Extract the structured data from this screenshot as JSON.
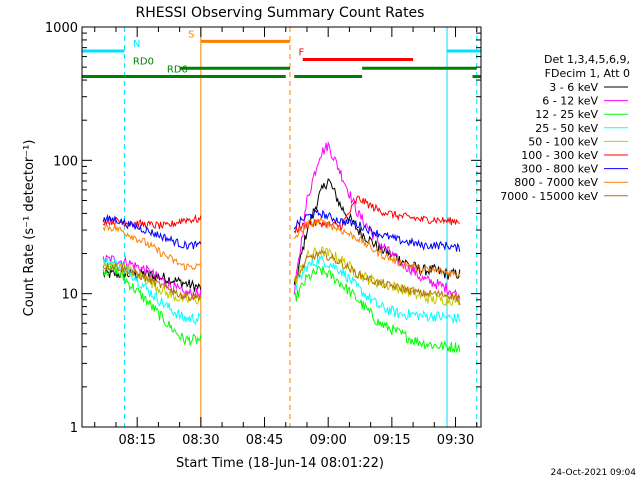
{
  "chart_data": {
    "type": "line",
    "title": "RHESSI Observing Summary Count Rates",
    "xlabel": "Start Time (18-Jun-14 08:01:22)",
    "ylabel": "Count Rate (s⁻¹ detector⁻¹)",
    "y_scale": "log",
    "ylim": [
      1,
      1000
    ],
    "xlim": [
      "08:02",
      "09:36"
    ],
    "x_ticks": [
      "08:15",
      "08:30",
      "08:45",
      "09:00",
      "09:15",
      "09:30"
    ],
    "y_ticks": [
      "1",
      "10",
      "100",
      "1000"
    ],
    "timestamp": "24-Oct-2021 09:04",
    "legend": {
      "header": [
        "Det 1,3,4,5,6,9,",
        "FDecim 1, Att 0"
      ],
      "placement": "right"
    },
    "series": [
      {
        "name": "3 - 6 keV",
        "color": "#000000",
        "x": [
          "08:07",
          "08:10",
          "08:13",
          "08:17",
          "08:22",
          "08:26",
          "08:30",
          "08:52",
          "08:55",
          "08:58",
          "09:00",
          "09:03",
          "09:07",
          "09:12",
          "09:17",
          "09:20",
          "09:22",
          "09:25",
          "09:28",
          "09:30",
          "09:31"
        ],
        "values": [
          14,
          14,
          14,
          14,
          13,
          12,
          11,
          11,
          30,
          55,
          72,
          45,
          30,
          22,
          18,
          16,
          15,
          15,
          14,
          14,
          14
        ]
      },
      {
        "name": "6 - 12 keV",
        "color": "#ff00ff",
        "x": [
          "08:07",
          "08:10",
          "08:13",
          "08:17",
          "08:22",
          "08:26",
          "08:30",
          "08:52",
          "08:55",
          "08:58",
          "09:00",
          "09:03",
          "09:07",
          "09:12",
          "09:17",
          "09:20",
          "09:22",
          "09:25",
          "09:28",
          "09:30",
          "09:31"
        ],
        "values": [
          18,
          18,
          17,
          15,
          12,
          10,
          10,
          10,
          50,
          110,
          130,
          80,
          40,
          24,
          17,
          15,
          13,
          12,
          11,
          10,
          9
        ]
      },
      {
        "name": "12 - 25 keV",
        "color": "#00ff00",
        "x": [
          "08:07",
          "08:10",
          "08:13",
          "08:17",
          "08:22",
          "08:26",
          "08:30",
          "08:52",
          "08:55",
          "08:58",
          "09:00",
          "09:03",
          "09:07",
          "09:12",
          "09:17",
          "09:20",
          "09:22",
          "09:25",
          "09:28",
          "09:30",
          "09:31"
        ],
        "values": [
          15,
          15,
          12,
          9,
          6,
          4.5,
          4.5,
          9,
          13,
          15,
          14,
          12,
          9,
          6,
          5,
          4.5,
          4.3,
          4.1,
          4,
          4,
          4
        ]
      },
      {
        "name": "25 - 50 keV",
        "color": "#00ffff",
        "x": [
          "08:07",
          "08:10",
          "08:13",
          "08:17",
          "08:22",
          "08:26",
          "08:30",
          "08:52",
          "08:55",
          "08:58",
          "09:00",
          "09:03",
          "09:07",
          "09:12",
          "09:17",
          "09:20",
          "09:22",
          "09:25",
          "09:28",
          "09:30",
          "09:31"
        ],
        "values": [
          17,
          17,
          15,
          11,
          8,
          6.5,
          6.5,
          11,
          16,
          18,
          17,
          15,
          11,
          8,
          7,
          7,
          6.8,
          6.8,
          6.6,
          6.5,
          6.5
        ]
      },
      {
        "name": "50 - 100 keV",
        "color": "#c8c800",
        "x": [
          "08:07",
          "08:10",
          "08:13",
          "08:17",
          "08:22",
          "08:26",
          "08:30",
          "08:52",
          "08:55",
          "08:58",
          "09:00",
          "09:03",
          "09:07",
          "09:12",
          "09:17",
          "09:20",
          "09:22",
          "09:25",
          "09:28",
          "09:30",
          "09:31"
        ],
        "values": [
          16,
          16,
          15,
          13,
          10,
          9,
          9,
          12,
          19,
          21,
          20,
          18,
          14,
          12,
          11,
          10,
          9.5,
          9,
          9,
          9,
          9
        ]
      },
      {
        "name": "100 - 300 keV",
        "color": "#ff0000",
        "x": [
          "08:07",
          "08:10",
          "08:13",
          "08:17",
          "08:22",
          "08:26",
          "08:30",
          "08:52",
          "08:55",
          "08:58",
          "09:00",
          "09:03",
          "09:07",
          "09:12",
          "09:17",
          "09:20",
          "09:22",
          "09:25",
          "09:28",
          "09:30",
          "09:31"
        ],
        "values": [
          35,
          35,
          34,
          33,
          32,
          36,
          36,
          30,
          33,
          34,
          33,
          32,
          52,
          42,
          38,
          37,
          36,
          36,
          35,
          35,
          35
        ]
      },
      {
        "name": "300 - 800 keV",
        "color": "#0000ff",
        "x": [
          "08:07",
          "08:10",
          "08:13",
          "08:17",
          "08:22",
          "08:26",
          "08:30",
          "08:52",
          "08:55",
          "08:58",
          "09:00",
          "09:03",
          "09:07",
          "09:12",
          "09:17",
          "09:20",
          "09:22",
          "09:25",
          "09:28",
          "09:30",
          "09:31"
        ],
        "values": [
          36,
          36,
          33,
          30,
          26,
          23,
          23,
          32,
          38,
          40,
          38,
          35,
          33,
          28,
          25,
          24,
          23,
          23,
          23,
          22,
          22
        ]
      },
      {
        "name": "800 - 7000 keV",
        "color": "#ff8000",
        "x": [
          "08:07",
          "08:10",
          "08:13",
          "08:17",
          "08:22",
          "08:26",
          "08:30",
          "08:52",
          "08:55",
          "08:58",
          "09:00",
          "09:03",
          "09:07",
          "09:12",
          "09:17",
          "09:20",
          "09:22",
          "09:25",
          "09:28",
          "09:30",
          "09:31"
        ],
        "values": [
          32,
          31,
          28,
          24,
          19,
          16,
          16,
          26,
          33,
          35,
          33,
          30,
          26,
          20,
          17,
          16,
          15,
          15,
          14.5,
          14,
          14
        ]
      },
      {
        "name": "7000 - 15000 keV",
        "color": "#b07800",
        "x": [
          "08:07",
          "08:10",
          "08:13",
          "08:17",
          "08:22",
          "08:26",
          "08:30",
          "08:52",
          "08:55",
          "08:58",
          "09:00",
          "09:03",
          "09:07",
          "09:12",
          "09:17",
          "09:20",
          "09:22",
          "09:25",
          "09:28",
          "09:30",
          "09:31"
        ],
        "values": [
          16,
          16,
          15,
          13,
          11,
          9.5,
          9.5,
          12,
          18,
          20,
          19,
          17,
          14,
          12,
          11,
          10.5,
          10,
          10,
          9.8,
          9.5,
          9.5
        ]
      }
    ],
    "flag_bars": [
      {
        "label": "N",
        "color": "#00e0ff",
        "y": 660,
        "segments": [
          [
            "08:02",
            "08:12"
          ],
          [
            "09:28",
            "09:36"
          ]
        ],
        "label_at": "08:14"
      },
      {
        "label": "S",
        "color": "#ff8000",
        "y": 780,
        "segments": [
          [
            "08:30",
            "08:51"
          ]
        ],
        "label_at": "08:27"
      },
      {
        "label": "F",
        "color": "#ff0000",
        "y": 570,
        "segments": [
          [
            "08:54",
            "09:20"
          ]
        ],
        "label_at": "08:53"
      },
      {
        "label": "RD0",
        "color": "#008000",
        "y": 490,
        "segments": [
          [
            "08:25",
            "08:51"
          ],
          [
            "09:08",
            "09:35"
          ]
        ],
        "label_at": "08:14"
      },
      {
        "label": "RD6",
        "color": "#008000",
        "y": 425,
        "segments": [
          [
            "08:02",
            "08:50"
          ],
          [
            "08:52",
            "09:08"
          ],
          [
            "09:34",
            "09:36"
          ]
        ],
        "label_at": "08:22"
      }
    ],
    "vlines": [
      {
        "x": "08:12",
        "color": "#00e0ff",
        "style": "dashed"
      },
      {
        "x": "08:30",
        "color": "#ff8000",
        "style": "solid"
      },
      {
        "x": "08:51",
        "color": "#ff8000",
        "style": "dashed"
      },
      {
        "x": "09:28",
        "color": "#00e0ff",
        "style": "solid"
      },
      {
        "x": "09:35",
        "color": "#00e0ff",
        "style": "dashed"
      }
    ],
    "grid": false
  }
}
